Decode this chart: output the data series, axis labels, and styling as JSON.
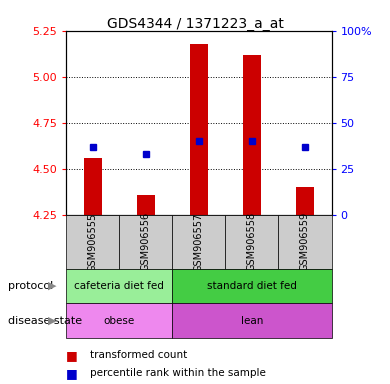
{
  "title": "GDS4344 / 1371223_a_at",
  "samples": [
    "GSM906555",
    "GSM906556",
    "GSM906557",
    "GSM906558",
    "GSM906559"
  ],
  "bar_values": [
    4.56,
    4.36,
    5.18,
    5.12,
    4.4
  ],
  "bar_base": 4.25,
  "dot_values": [
    4.62,
    4.58,
    4.65,
    4.65,
    4.62
  ],
  "ylim": [
    4.25,
    5.25
  ],
  "yticks_left": [
    4.25,
    4.5,
    4.75,
    5.0,
    5.25
  ],
  "yticks_right": [
    0,
    25,
    50,
    75,
    100
  ],
  "bar_color": "#cc0000",
  "dot_color": "#0000cc",
  "protocol_groups": [
    {
      "label": "cafeteria diet fed",
      "samples": [
        0,
        1
      ],
      "color": "#99ee99"
    },
    {
      "label": "standard diet fed",
      "samples": [
        2,
        3,
        4
      ],
      "color": "#44cc44"
    }
  ],
  "disease_groups": [
    {
      "label": "obese",
      "samples": [
        0,
        1
      ],
      "color": "#ee88ee"
    },
    {
      "label": "lean",
      "samples": [
        2,
        3,
        4
      ],
      "color": "#cc55cc"
    }
  ],
  "legend_items": [
    {
      "label": "transformed count",
      "color": "#cc0000"
    },
    {
      "label": "percentile rank within the sample",
      "color": "#0000cc"
    }
  ],
  "sample_bg_color": "#cccccc",
  "background_color": "#ffffff"
}
